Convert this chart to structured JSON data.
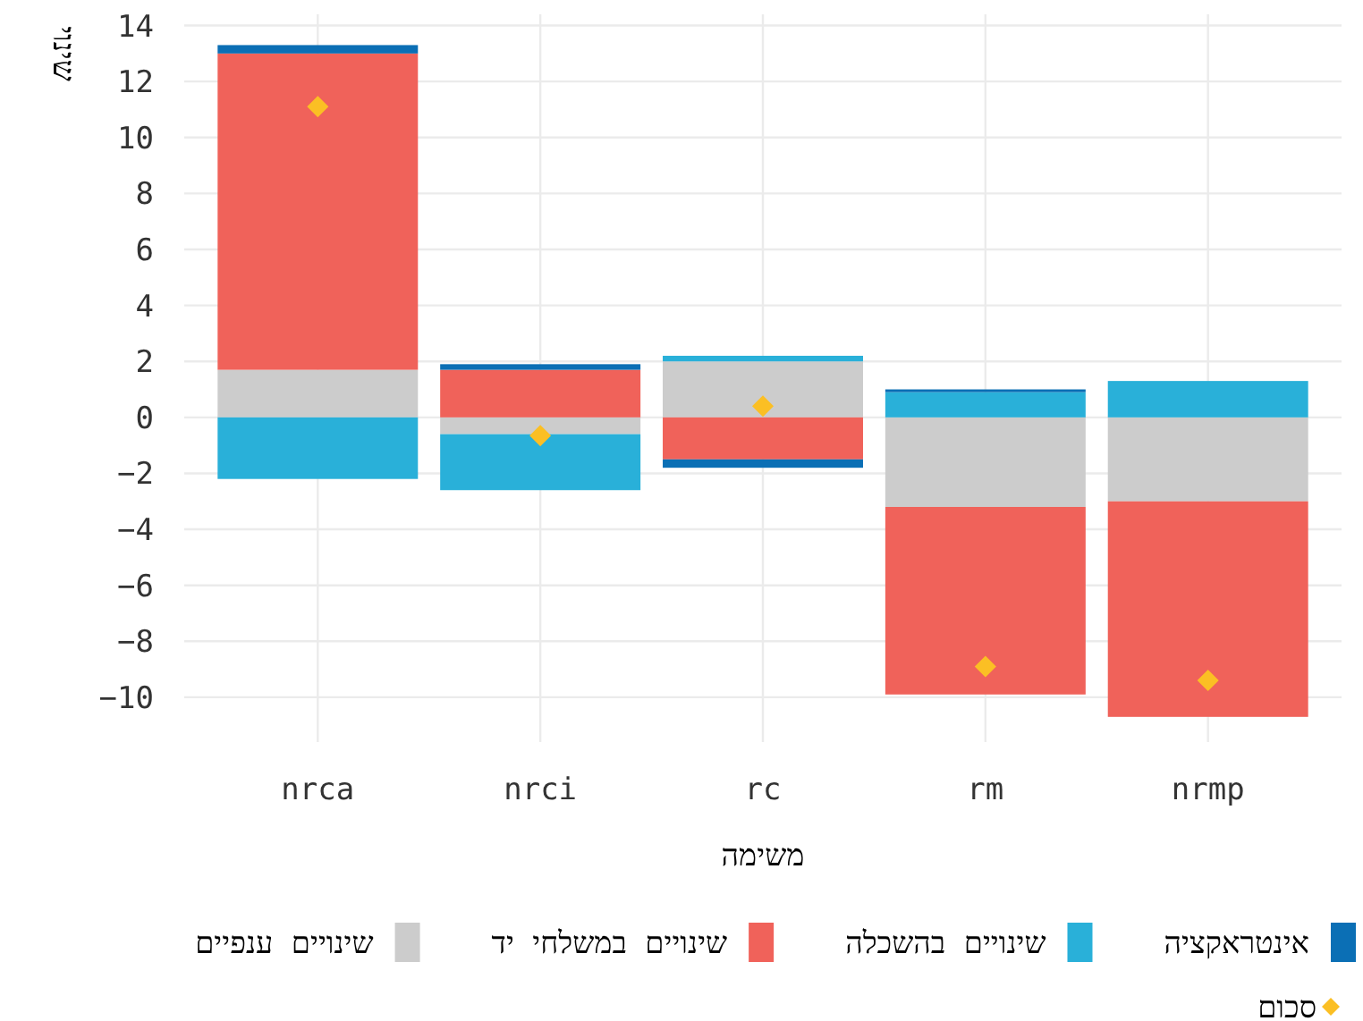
{
  "chart_data": {
    "type": "bar",
    "stacked": true,
    "xlabel": "משימה",
    "ylabel": "שינוי",
    "categories": [
      "nrca",
      "nrci",
      "rc",
      "rm",
      "nrmp"
    ],
    "series": [
      {
        "name": "שינויים ענפיים",
        "color": "#cccccc",
        "values": [
          1.7,
          -0.6,
          2.0,
          -3.2,
          -3.0
        ]
      },
      {
        "name": "שינויים במשלחי יד",
        "color": "#f0625a",
        "values": [
          11.3,
          1.7,
          -1.5,
          -6.7,
          -7.7
        ]
      },
      {
        "name": "שינויים בהשכלה",
        "color": "#29b0d9",
        "values": [
          -2.2,
          -2.0,
          0.2,
          0.9,
          1.3
        ]
      },
      {
        "name": "אינטראקציה",
        "color": "#0b6fb5",
        "values": [
          0.3,
          0.2,
          -0.3,
          0.1,
          0
        ]
      },
      {
        "name": "סכום",
        "type": "scatter",
        "marker": "diamond",
        "color": "#fbbf24",
        "x": [
          "nrca",
          "nrci",
          "rc",
          "rm",
          "nrmp"
        ],
        "values": [
          11.1,
          -0.65,
          0.4,
          -8.9,
          -9.4
        ]
      }
    ],
    "ylim": [
      -11.6,
      14.4
    ],
    "yticks": [
      -10,
      -8,
      -6,
      -4,
      -2,
      0,
      2,
      4,
      6,
      8,
      10,
      12,
      14
    ],
    "grid": true,
    "legend": "bottom"
  }
}
